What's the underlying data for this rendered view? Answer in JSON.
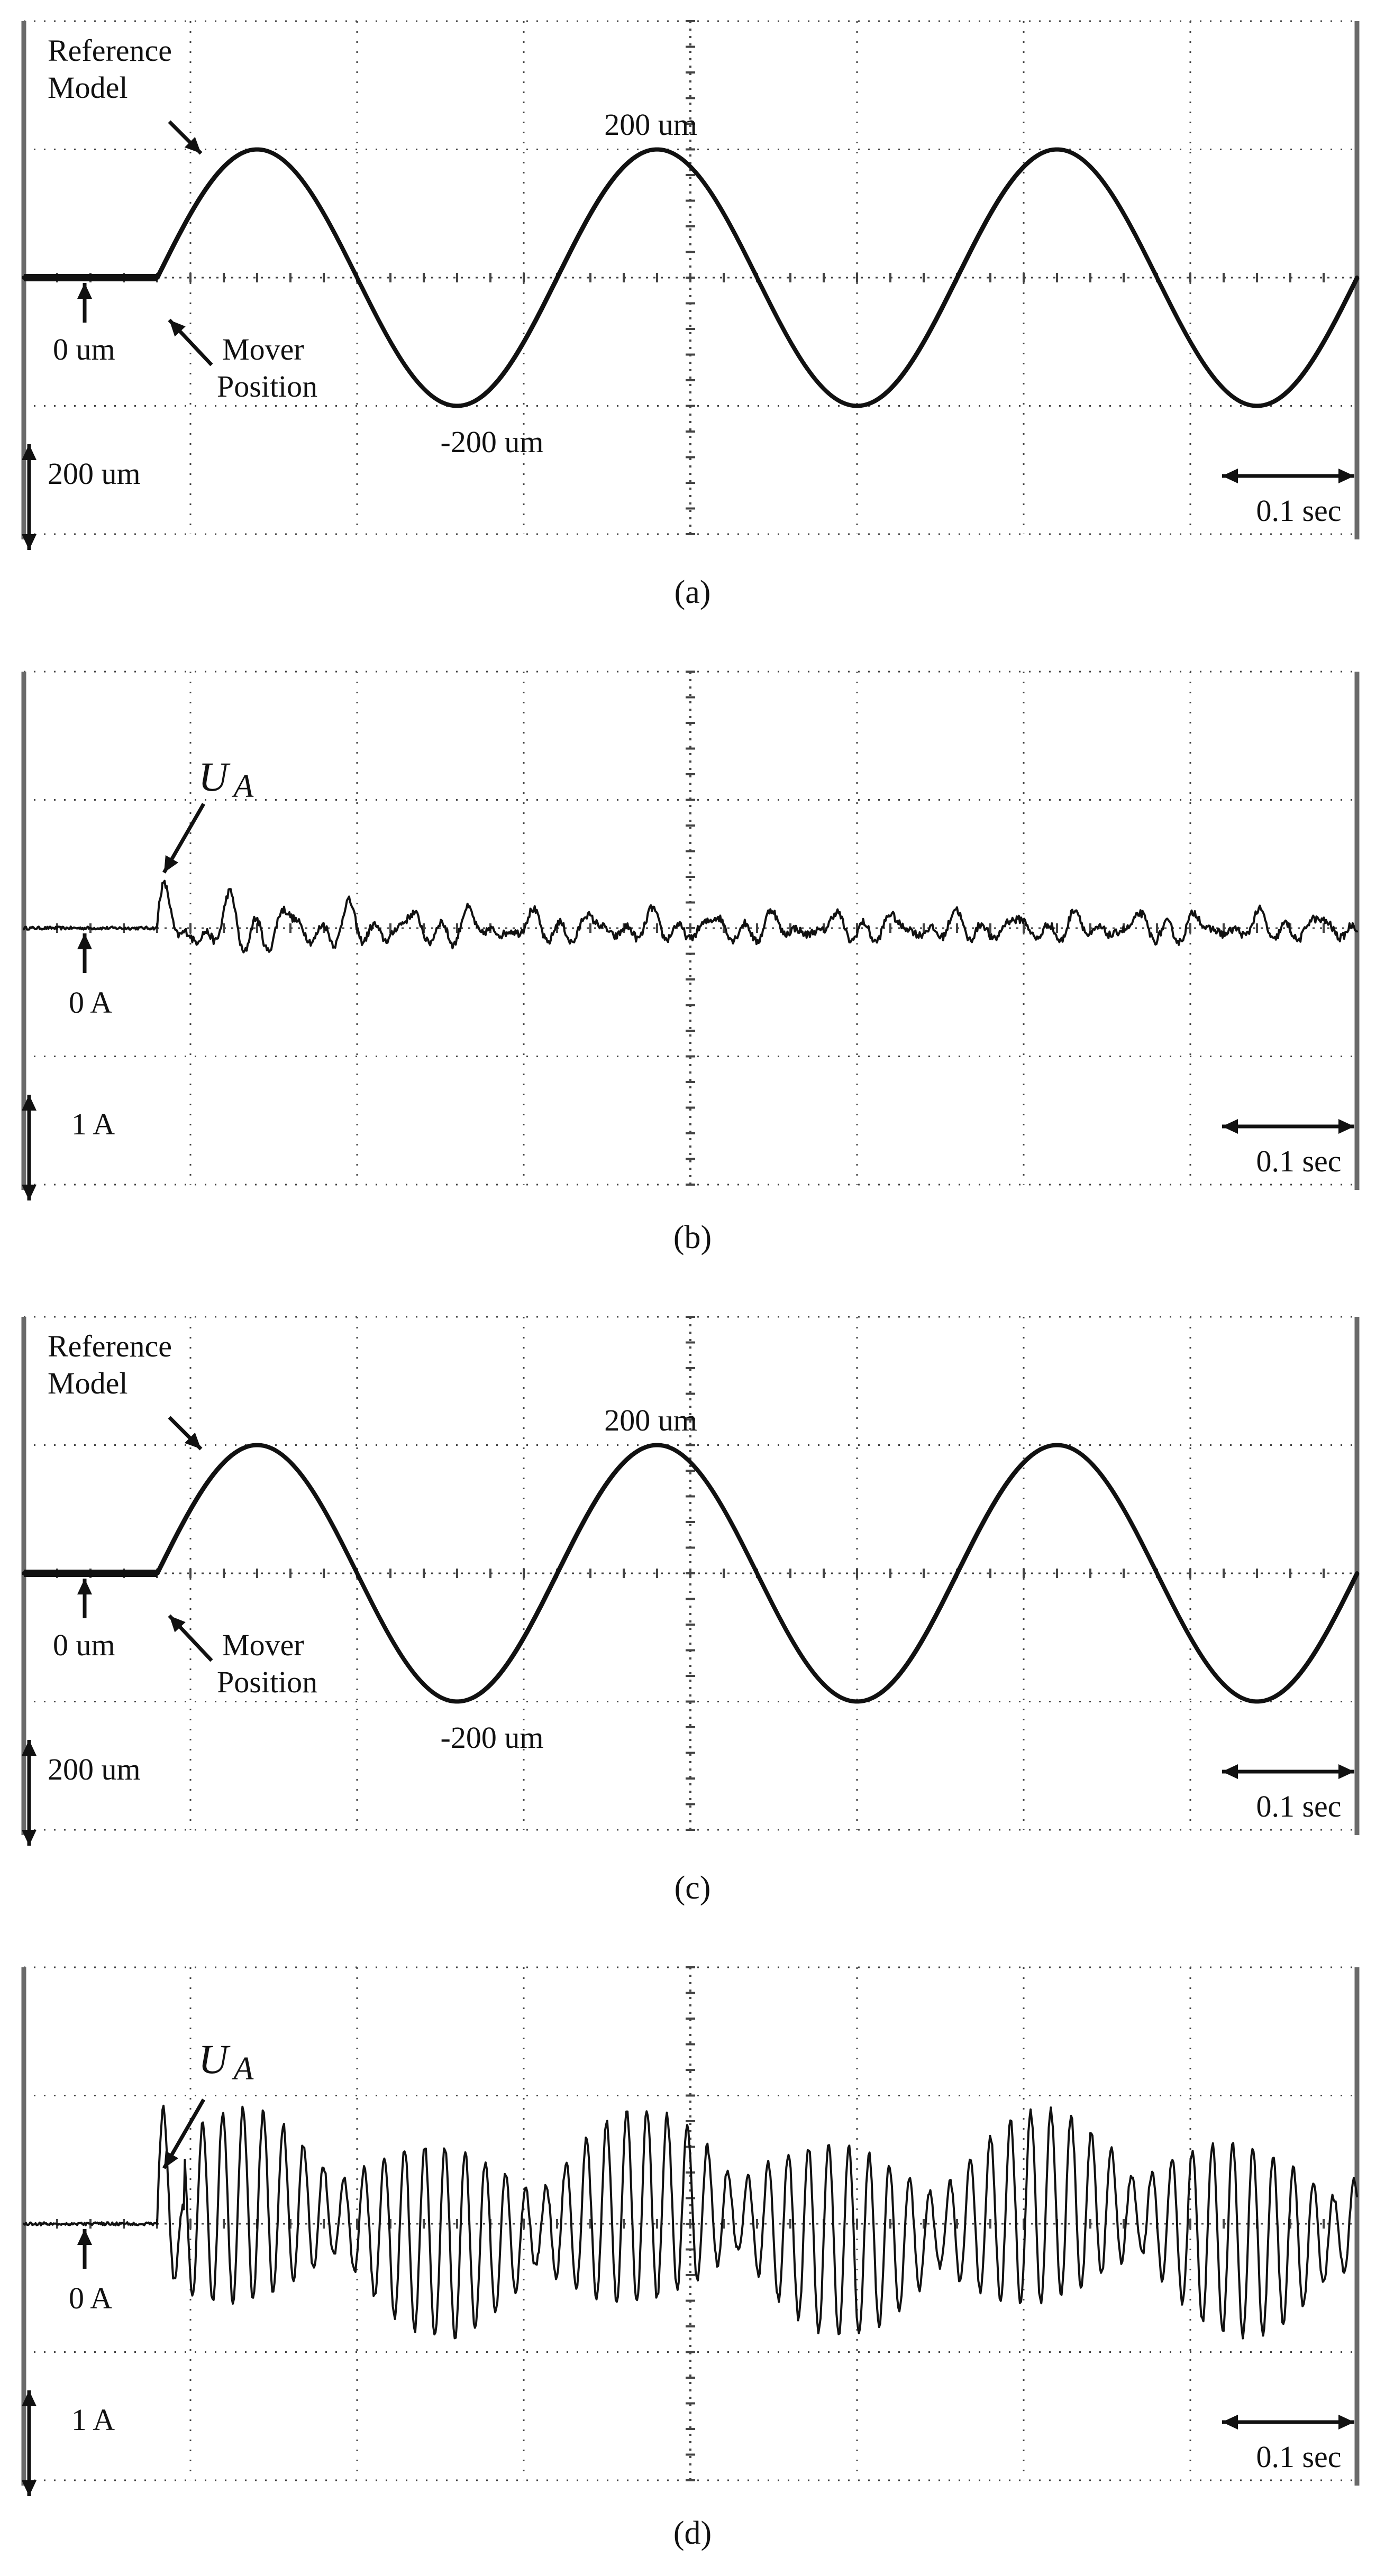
{
  "chart_data": [
    {
      "panel": "(a)",
      "type": "line",
      "title": "",
      "xlabel": "",
      "ylabel": "",
      "x_range_sec": [
        0,
        1.0
      ],
      "y_range_um": [
        -400,
        400
      ],
      "grid": true,
      "time_scale_label": "0.1 sec",
      "amplitude_scale_label": "200 um",
      "zero_label": "0 um",
      "peak_label": "200 um",
      "trough_label": "-200 um",
      "legend": [
        "Reference Model",
        "Mover Position"
      ],
      "series": [
        {
          "name": "Reference Model",
          "signal": "sine",
          "amplitude": 200,
          "period_sec": 0.3,
          "start_sec": 0.1,
          "baseline": 0
        },
        {
          "name": "Mover Position",
          "signal": "sine",
          "amplitude": 200,
          "period_sec": 0.3,
          "start_sec": 0.1,
          "baseline": 0
        }
      ]
    },
    {
      "panel": "(b)",
      "type": "line",
      "title": "",
      "xlabel": "",
      "ylabel": "",
      "x_range_sec": [
        0,
        1.0
      ],
      "y_range_A": [
        -2,
        2
      ],
      "grid": true,
      "time_scale_label": "0.1 sec",
      "amplitude_scale_label": "1 A",
      "zero_label": "0 A",
      "signal_label": {
        "symbol": "U",
        "subscript": "A"
      },
      "series": [
        {
          "name": "U_A",
          "signal": "oscillation",
          "start_sec": 0.1,
          "initial_peak_A": 0.5,
          "steady_peak_A": 0.18,
          "decay_sec": 0.1,
          "main_freq_hz": 33
        }
      ]
    },
    {
      "panel": "(c)",
      "type": "line",
      "title": "",
      "xlabel": "",
      "ylabel": "",
      "x_range_sec": [
        0,
        1.0
      ],
      "y_range_um": [
        -400,
        400
      ],
      "grid": true,
      "time_scale_label": "0.1 sec",
      "amplitude_scale_label": "200 um",
      "zero_label": "0 um",
      "peak_label": "200 um",
      "trough_label": "-200 um",
      "legend": [
        "Reference Model",
        "Mover Position"
      ],
      "series": [
        {
          "name": "Reference Model",
          "signal": "sine",
          "amplitude": 200,
          "period_sec": 0.3,
          "start_sec": 0.1,
          "baseline": 0
        },
        {
          "name": "Mover Position",
          "signal": "sine",
          "amplitude": 200,
          "period_sec": 0.3,
          "start_sec": 0.1,
          "baseline": 0
        }
      ]
    },
    {
      "panel": "(d)",
      "type": "line",
      "title": "",
      "xlabel": "",
      "ylabel": "",
      "x_range_sec": [
        0,
        1.0
      ],
      "y_range_A": [
        -2,
        2
      ],
      "grid": true,
      "time_scale_label": "0.1 sec",
      "amplitude_scale_label": "1 A",
      "zero_label": "0 A",
      "signal_label": {
        "symbol": "U",
        "subscript": "A"
      },
      "series": [
        {
          "name": "U_A",
          "signal": "oscillation",
          "start_sec": 0.1,
          "initial_peak_A": 0.8,
          "steady_peak_A": 0.75,
          "beat_period_sec": 0.15,
          "main_freq_hz": 66
        }
      ]
    }
  ],
  "captions": [
    "(a)",
    "(b)",
    "(c)",
    "(d)"
  ]
}
